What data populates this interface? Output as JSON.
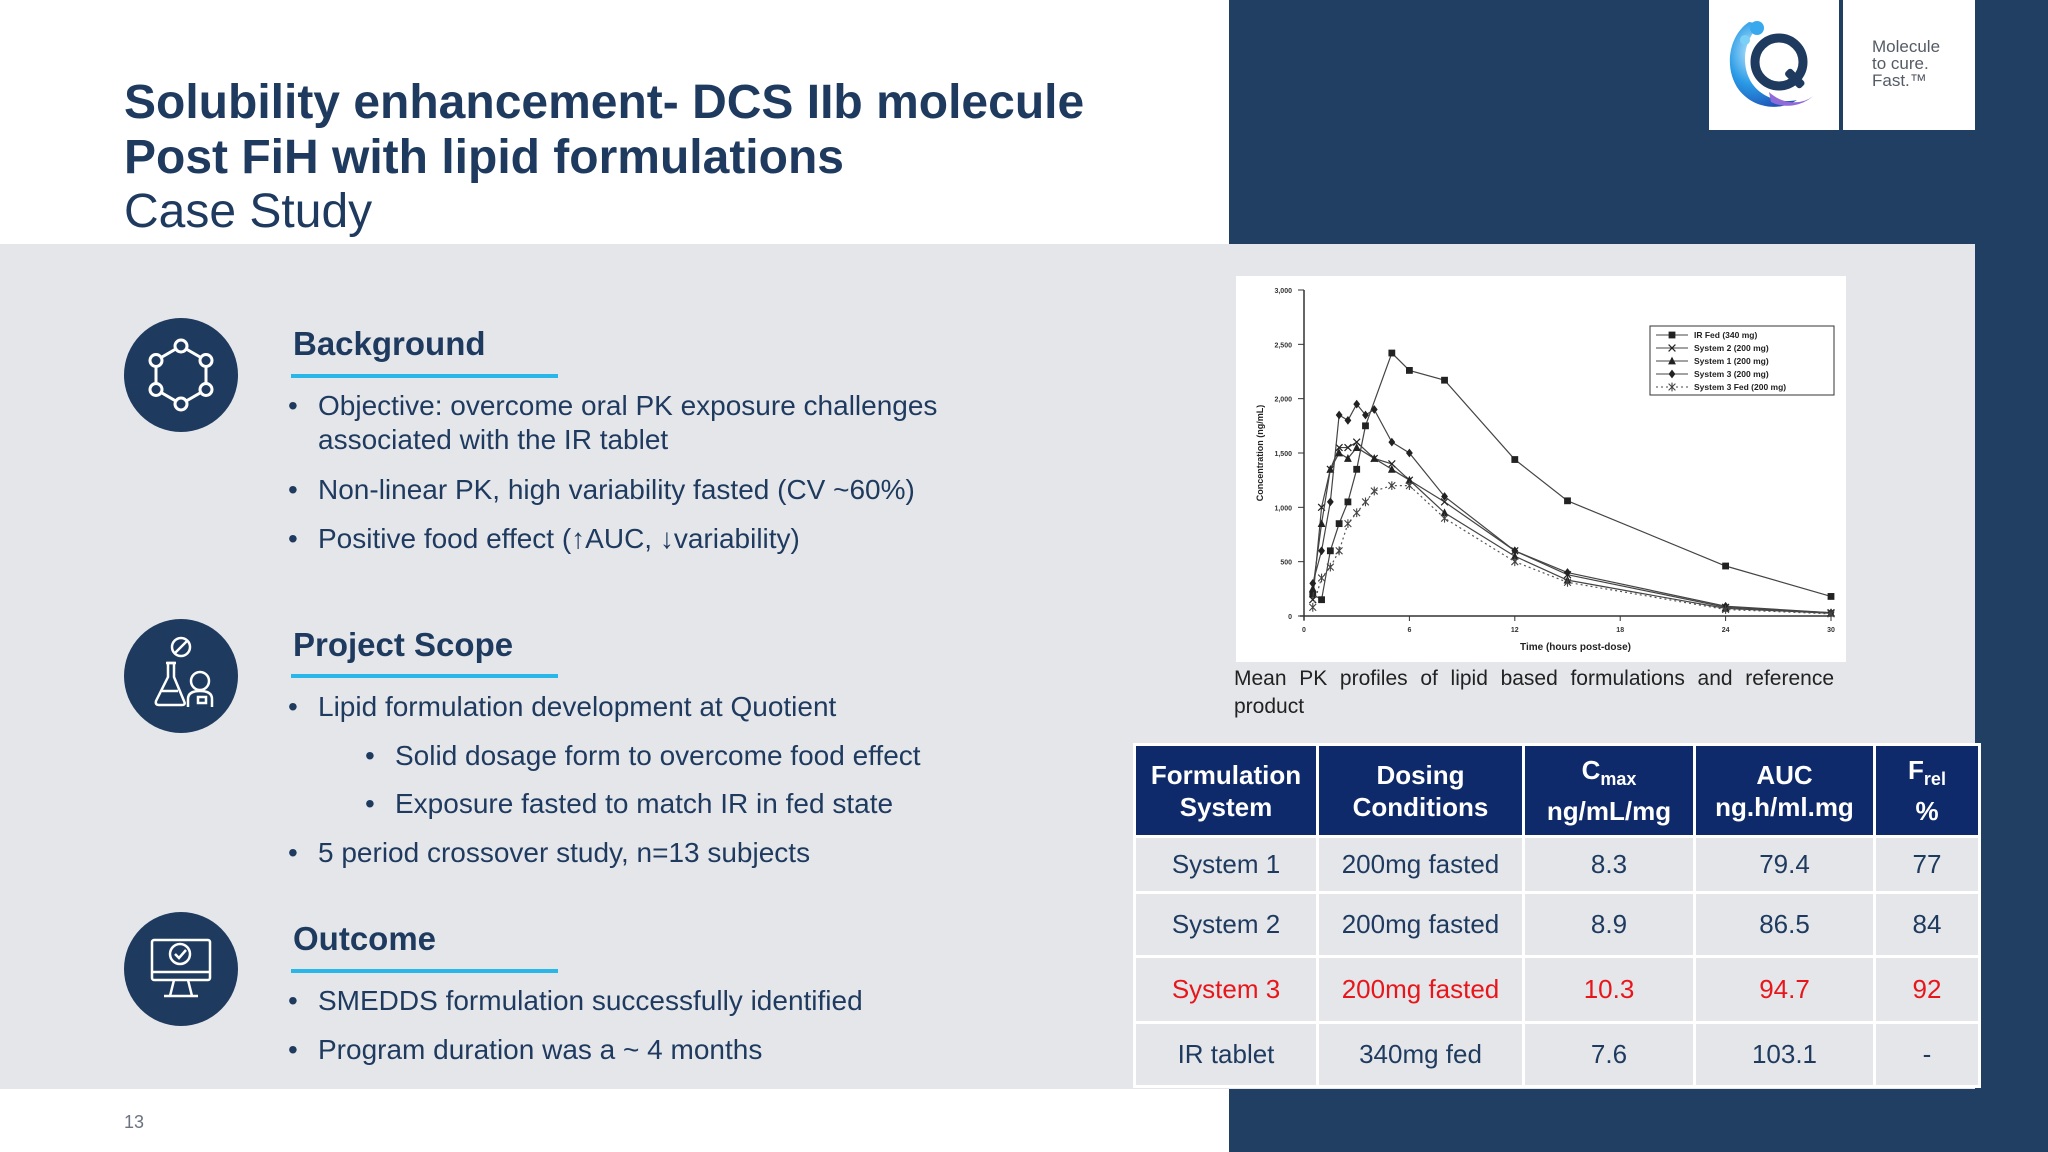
{
  "slide": {
    "title_line1": "Solubility enhancement- DCS IIb molecule",
    "title_line2": "Post FiH with lipid formulations",
    "subtitle": "Case Study",
    "page_number": "13"
  },
  "logo": {
    "tagline": [
      "Molecule",
      "to cure.",
      "Fast.™"
    ]
  },
  "colors": {
    "navy": "#213f63",
    "heading": "#1f3a5f",
    "accent_line": "#28b7e8",
    "table_header": "#0f2a6b",
    "highlight": "#e8161b"
  },
  "sections": [
    {
      "heading": "Background",
      "icon": "hexagon-molecule-icon",
      "bullets": [
        "Objective: overcome oral PK exposure challenges associated with the IR tablet",
        "Non-linear PK, high variability fasted (CV ~60%)",
        "Positive food effect (↑AUC, ↓variability)"
      ]
    },
    {
      "heading": "Project Scope",
      "icon": "lab-scientist-icon",
      "bullets": [
        "Lipid formulation development at Quotient",
        "Solid dosage form to overcome food effect",
        "Exposure fasted to match IR in fed state",
        "5 period crossover study, n=13 subjects"
      ]
    },
    {
      "heading": "Outcome",
      "icon": "monitor-check-icon",
      "bullets": [
        "SMEDDS formulation successfully identified",
        "Program duration was a ~ 4 months"
      ]
    }
  ],
  "chart_data": {
    "type": "line",
    "title": "",
    "xlabel": "Time (hours post-dose)",
    "ylabel": "Concentration (ng/mL)",
    "xlim": [
      0,
      30
    ],
    "ylim": [
      0,
      3000
    ],
    "xticks": [
      0,
      6,
      12,
      18,
      24,
      30
    ],
    "yticks": [
      0,
      500,
      1000,
      1500,
      2000,
      2500,
      3000
    ],
    "ytick_labels": [
      "0",
      "500",
      "1,000",
      "1,500",
      "2,000",
      "2,500",
      "3,000"
    ],
    "legend_position": "top-right",
    "grid": false,
    "series": [
      {
        "name": "IR Fed (340 mg)",
        "marker": "square",
        "dash": "solid",
        "x": [
          0.5,
          1,
          1.5,
          2,
          2.5,
          3,
          3.5,
          5,
          6,
          8,
          12,
          15,
          24,
          30
        ],
        "y": [
          200,
          150,
          600,
          850,
          1050,
          1350,
          1750,
          2420,
          2260,
          2170,
          1440,
          1060,
          460,
          180
        ]
      },
      {
        "name": "System 2 (200 mg)",
        "marker": "x",
        "dash": "solid",
        "x": [
          0.5,
          1,
          1.5,
          2,
          2.5,
          3,
          4,
          5,
          6,
          8,
          12,
          15,
          24,
          30
        ],
        "y": [
          150,
          1000,
          1350,
          1550,
          1550,
          1600,
          1450,
          1400,
          1250,
          1050,
          600,
          380,
          80,
          30
        ]
      },
      {
        "name": "System 1 (200 mg)",
        "marker": "triangle",
        "dash": "solid",
        "x": [
          0.5,
          1,
          1.5,
          2,
          2.5,
          3,
          4,
          5,
          6,
          8,
          12,
          15,
          24,
          30
        ],
        "y": [
          250,
          850,
          1350,
          1500,
          1450,
          1550,
          1450,
          1350,
          1250,
          950,
          550,
          330,
          70,
          25
        ]
      },
      {
        "name": "System 3 (200 mg)",
        "marker": "diamond",
        "dash": "solid",
        "x": [
          0.5,
          1,
          1.5,
          2,
          2.5,
          3,
          3.5,
          4,
          5,
          6,
          8,
          12,
          15,
          24,
          30
        ],
        "y": [
          300,
          600,
          1050,
          1850,
          1800,
          1950,
          1850,
          1900,
          1600,
          1500,
          1100,
          600,
          400,
          90,
          30
        ]
      },
      {
        "name": "System 3 Fed (200 mg)",
        "marker": "star",
        "dash": "dotted",
        "x": [
          0.5,
          1,
          1.5,
          2,
          2.5,
          3,
          3.5,
          4,
          5,
          6,
          8,
          12,
          15,
          24,
          30
        ],
        "y": [
          80,
          350,
          450,
          600,
          850,
          950,
          1050,
          1150,
          1200,
          1200,
          900,
          500,
          310,
          60,
          20
        ]
      }
    ]
  },
  "chart_caption": "Mean PK profiles of lipid based formulations and reference product",
  "table": {
    "headers": [
      {
        "line1": "Formulation",
        "line2": "System"
      },
      {
        "line1": "Dosing",
        "line2": "Conditions"
      },
      {
        "line1_main": "C",
        "line1_sub": "max",
        "line2": "ng/mL/mg"
      },
      {
        "line1": "AUC",
        "line2": "ng.h/ml.mg"
      },
      {
        "line1_main": "F",
        "line1_sub": "rel",
        "line2": "%"
      }
    ],
    "rows": [
      {
        "cells": [
          "System 1",
          "200mg fasted",
          "8.3",
          "79.4",
          "77"
        ],
        "highlight": false
      },
      {
        "cells": [
          "System 2",
          "200mg fasted",
          "8.9",
          "86.5",
          "84"
        ],
        "highlight": false
      },
      {
        "cells": [
          "System 3",
          "200mg fasted",
          "10.3",
          "94.7",
          "92"
        ],
        "highlight": true
      },
      {
        "cells": [
          "IR tablet",
          "340mg fed",
          "7.6",
          "103.1",
          "-"
        ],
        "highlight": false
      }
    ]
  }
}
